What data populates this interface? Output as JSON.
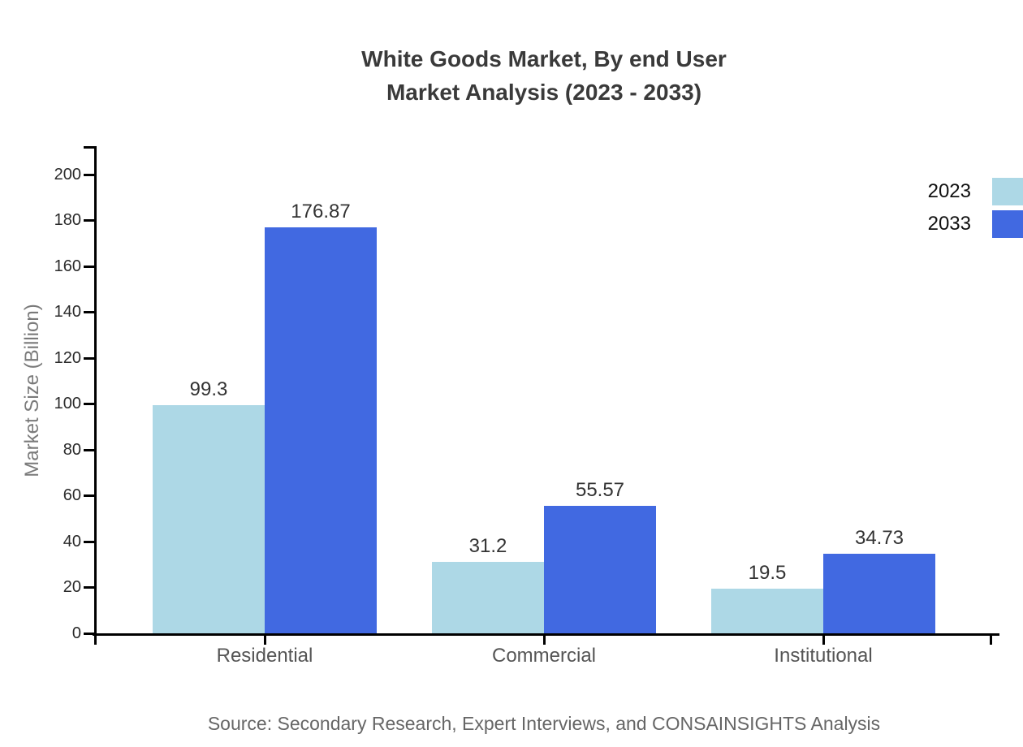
{
  "title": {
    "line1": "White Goods Market, By end User",
    "line2": "Market Analysis (2023 - 2033)"
  },
  "source_note": "Source: Secondary Research, Expert Interviews, and CONSAINSIGHTS Analysis",
  "chart_data": {
    "type": "bar",
    "title": "White Goods Market, By end User Market Analysis (2023 - 2033)",
    "categories": [
      "Residential",
      "Commercial",
      "Institutional"
    ],
    "series": [
      {
        "name": "2023",
        "color": "#ADD8E6",
        "values": [
          99.3,
          31.2,
          19.5
        ]
      },
      {
        "name": "2033",
        "color": "#4169E1",
        "values": [
          176.87,
          55.57,
          34.73
        ]
      }
    ],
    "xlabel": "",
    "ylabel": "Market Size (Billion)",
    "ylim": [
      0,
      212
    ],
    "yticks": [
      0,
      20,
      40,
      60,
      80,
      100,
      120,
      140,
      160,
      180,
      200
    ],
    "grid": false,
    "legend_position": "top-right",
    "value_labels": true
  },
  "colors": {
    "series_2023": "#ADD8E6",
    "series_2033": "#4169E1",
    "axis": "#000000",
    "title_text": "#3a3a3a",
    "tick_text": "#2b2b2b",
    "category_text": "#555555",
    "muted_text": "#666666",
    "axis_title_text": "#7a7a7a"
  }
}
